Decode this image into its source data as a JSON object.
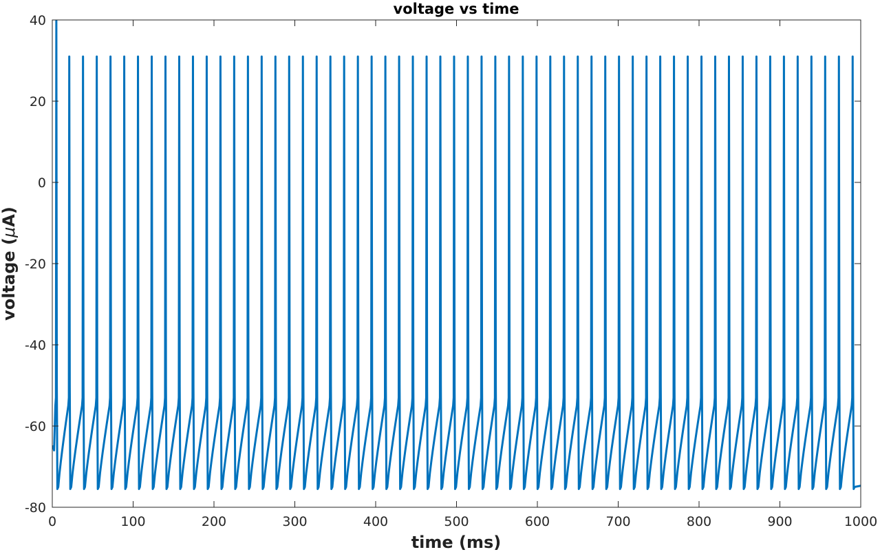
{
  "chart_data": {
    "type": "line",
    "title": "voltage vs time",
    "xlabel": "time (ms)",
    "ylabel": "voltage (μA)",
    "ylabel_prefix": "voltage (",
    "ylabel_mu": "μ",
    "ylabel_suffix": "A)",
    "xlim": [
      0,
      1000
    ],
    "ylim": [
      -80,
      40
    ],
    "x_ticks": [
      0,
      100,
      200,
      300,
      400,
      500,
      600,
      700,
      800,
      900,
      1000
    ],
    "y_ticks": [
      -80,
      -60,
      -40,
      -20,
      0,
      20,
      40
    ],
    "x_tick_labels": [
      "0",
      "100",
      "200",
      "300",
      "400",
      "500",
      "600",
      "700",
      "800",
      "900",
      "1000"
    ],
    "y_tick_labels": [
      "-80",
      "-60",
      "-40",
      "-20",
      "0",
      "20",
      "40"
    ],
    "grid": false,
    "series": [
      {
        "color": "#0072BD",
        "resting_potential": -65,
        "spike_peak": 31,
        "first_spike_peak": 40,
        "after_hyperpolarization": -75.5,
        "pre_spike_threshold": -55,
        "spike_times": [
          5,
          21,
          38,
          55,
          72,
          89,
          106,
          123,
          140,
          157,
          174,
          191,
          208,
          225,
          242,
          259,
          276,
          293,
          310,
          327,
          344,
          361,
          378,
          395,
          412,
          429,
          446,
          463,
          480,
          497,
          514,
          531,
          548,
          565,
          582,
          599,
          616,
          633,
          650,
          667,
          684,
          701,
          718,
          735,
          752,
          769,
          786,
          803,
          820,
          837,
          854,
          871,
          888,
          905,
          922,
          939,
          956,
          973,
          990
        ]
      }
    ]
  }
}
